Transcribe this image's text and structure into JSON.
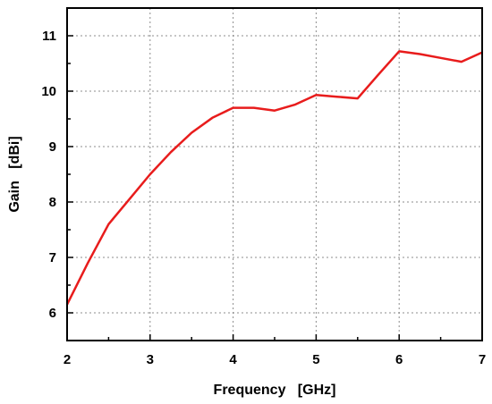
{
  "chart_data": {
    "type": "line",
    "title": "",
    "xlabel": "Frequency   [GHz]",
    "ylabel": "Gain   [dBi]",
    "xlim": [
      2,
      7
    ],
    "ylim": [
      5.5,
      11.5
    ],
    "x_ticks": [
      "2",
      "3",
      "4",
      "5",
      "6",
      "7"
    ],
    "y_ticks": [
      "6",
      "7",
      "8",
      "9",
      "10",
      "11"
    ],
    "grid": true,
    "legend": "none",
    "series": [
      {
        "color": "#e81c1c",
        "x": [
          2.0,
          2.25,
          2.5,
          2.75,
          3.0,
          3.25,
          3.5,
          3.75,
          4.0,
          4.25,
          4.5,
          4.75,
          5.0,
          5.25,
          5.5,
          5.75,
          6.0,
          6.25,
          6.5,
          6.75,
          7.0
        ],
        "y": [
          6.15,
          6.9,
          7.6,
          8.05,
          8.5,
          8.9,
          9.25,
          9.52,
          9.7,
          9.7,
          9.65,
          9.76,
          9.93,
          9.9,
          9.87,
          10.3,
          10.72,
          10.67,
          10.6,
          10.53,
          10.7
        ]
      }
    ]
  }
}
